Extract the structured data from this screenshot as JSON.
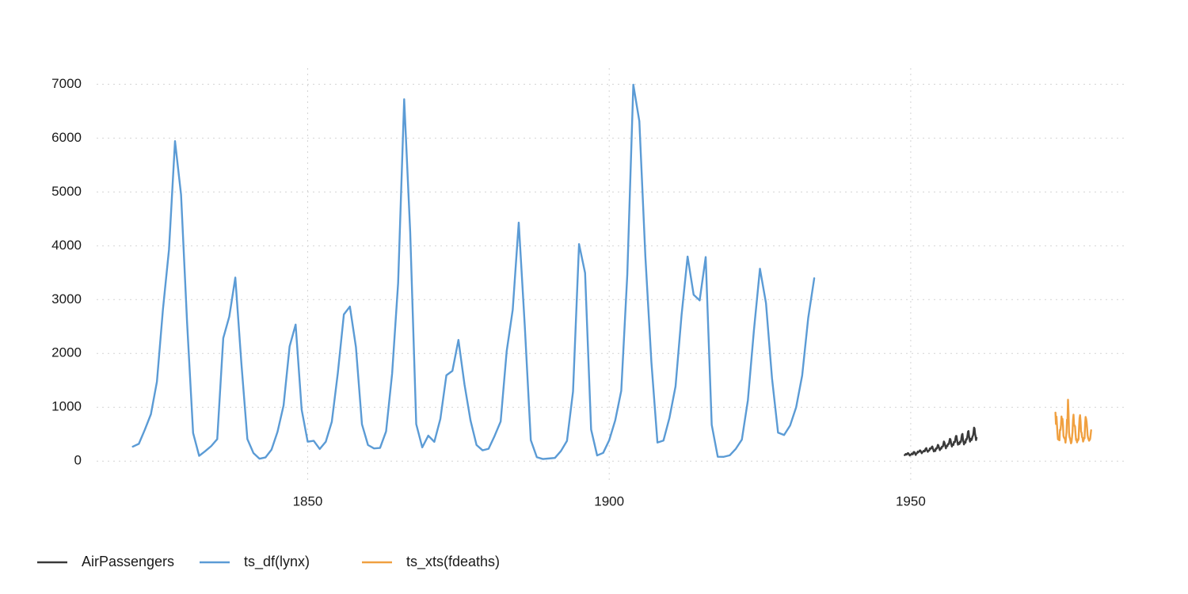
{
  "chart_data": {
    "type": "line",
    "title": "",
    "xlabel": "",
    "ylabel": "",
    "xlim": [
      1815,
      1986
    ],
    "ylim": [
      -350,
      7300
    ],
    "x_ticks": [
      1850,
      1900,
      1950
    ],
    "x_tick_labels": [
      "1850",
      "1900",
      "1950"
    ],
    "y_ticks": [
      0,
      1000,
      2000,
      3000,
      4000,
      5000,
      6000,
      7000
    ],
    "y_tick_labels": [
      "0",
      "1000",
      "2000",
      "3000",
      "4000",
      "5000",
      "6000",
      "7000"
    ],
    "grid": true,
    "legend_position": "bottom-left",
    "series": [
      {
        "name": "AirPassengers",
        "color": "#3a3a3a",
        "x_start": 1949,
        "x_step": 0.08333333,
        "values": [
          112,
          118,
          132,
          129,
          121,
          135,
          148,
          148,
          136,
          119,
          104,
          118,
          115,
          126,
          141,
          135,
          125,
          149,
          170,
          170,
          158,
          133,
          114,
          140,
          145,
          150,
          178,
          163,
          172,
          178,
          199,
          199,
          184,
          162,
          146,
          166,
          171,
          180,
          193,
          181,
          183,
          218,
          230,
          242,
          209,
          191,
          172,
          194,
          196,
          196,
          236,
          235,
          229,
          243,
          264,
          272,
          237,
          211,
          180,
          201,
          204,
          188,
          235,
          227,
          234,
          264,
          302,
          293,
          259,
          229,
          203,
          229,
          242,
          233,
          267,
          269,
          270,
          315,
          364,
          347,
          312,
          274,
          237,
          278,
          284,
          277,
          317,
          313,
          318,
          374,
          413,
          405,
          355,
          306,
          271,
          306,
          315,
          301,
          356,
          348,
          355,
          422,
          465,
          467,
          404,
          347,
          305,
          336,
          340,
          318,
          362,
          348,
          363,
          435,
          491,
          505,
          404,
          359,
          310,
          337,
          360,
          342,
          406,
          396,
          420,
          472,
          548,
          559,
          463,
          407,
          362,
          405,
          417,
          391,
          419,
          461,
          472,
          535,
          622,
          606,
          508,
          461,
          390,
          432
        ]
      },
      {
        "name": "ts_df(lynx)",
        "color": "#5b9bd5",
        "x_start": 1821,
        "x_step": 1,
        "values": [
          269,
          321,
          585,
          871,
          1475,
          2821,
          3928,
          5943,
          4950,
          2577,
          523,
          98,
          184,
          279,
          409,
          2285,
          2685,
          3409,
          1824,
          409,
          151,
          45,
          68,
          213,
          546,
          1033,
          2129,
          2536,
          957,
          361,
          377,
          225,
          360,
          731,
          1638,
          2725,
          2871,
          2119,
          684,
          299,
          236,
          245,
          552,
          1623,
          3311,
          6721,
          4254,
          687,
          255,
          473,
          358,
          784,
          1594,
          1676,
          2251,
          1426,
          756,
          299,
          201,
          229,
          469,
          736,
          2042,
          2811,
          4431,
          2511,
          389,
          73,
          39,
          49,
          59,
          188,
          377,
          1292,
          4031,
          3495,
          587,
          105,
          153,
          387,
          758,
          1307,
          3465,
          6991,
          6313,
          3794,
          1836,
          345,
          382,
          808,
          1388,
          2713,
          3800,
          3091,
          2985,
          3790,
          674,
          81,
          80,
          108,
          229,
          399,
          1132,
          2432,
          3574,
          2935,
          1537,
          529,
          485,
          662,
          1000,
          1590,
          2657,
          3396
        ]
      },
      {
        "name": "ts_xts(fdeaths)",
        "color": "#f0a040",
        "x_start": 1974,
        "x_step": 0.08333333,
        "values": [
          901,
          689,
          827,
          677,
          522,
          406,
          441,
          393,
          387,
          582,
          578,
          666,
          830,
          752,
          785,
          664,
          467,
          438,
          421,
          412,
          343,
          440,
          531,
          771,
          767,
          1141,
          896,
          532,
          447,
          420,
          376,
          330,
          357,
          445,
          546,
          764,
          862,
          660,
          663,
          643,
          502,
          392,
          411,
          348,
          387,
          385,
          411,
          638,
          796,
          853,
          737,
          546,
          530,
          446,
          431,
          362,
          387,
          430,
          425,
          679,
          821,
          785,
          727,
          612,
          478,
          429,
          405,
          379,
          393,
          411,
          487,
          574
        ]
      }
    ]
  }
}
